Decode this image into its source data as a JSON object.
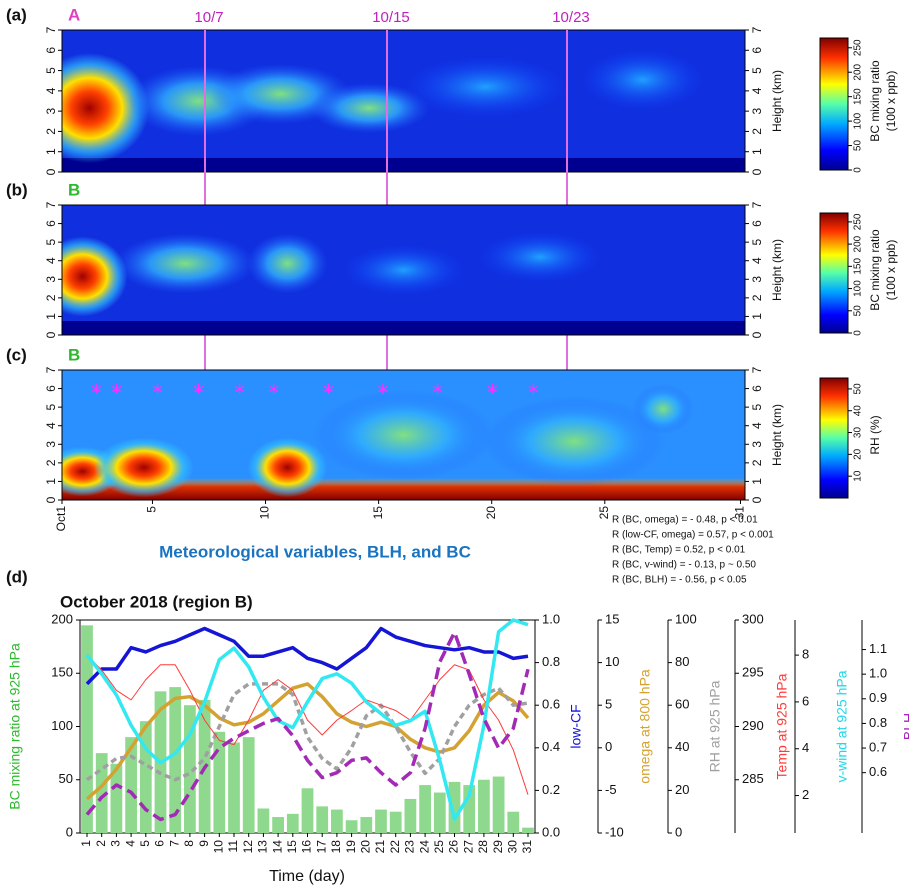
{
  "chart_data": [
    {
      "type": "heatmap",
      "panel_label": "(a)",
      "region": "A",
      "region_color": "#e040c0",
      "ylabel": "Height (km)",
      "ylim": [
        0,
        7
      ],
      "yticks": [
        0,
        1,
        2,
        3,
        4,
        5,
        6,
        7
      ],
      "markers": [
        "10/7",
        "10/15",
        "10/23"
      ],
      "colorbar": {
        "label": [
          "BC mixing ratio",
          "(100 x ppb)"
        ],
        "lim": [
          0,
          270
        ],
        "ticks": [
          0,
          50,
          100,
          150,
          200,
          250
        ]
      }
    },
    {
      "type": "heatmap",
      "panel_label": "(b)",
      "region": "B",
      "region_color": "#2eb82e",
      "ylabel": "Height (km)",
      "ylim": [
        0,
        7
      ],
      "yticks": [
        0,
        1,
        2,
        3,
        4,
        5,
        6,
        7
      ],
      "colorbar": {
        "label": [
          "BC mixing ratio",
          "(100 x ppb)"
        ],
        "lim": [
          0,
          270
        ],
        "ticks": [
          0,
          50,
          100,
          150,
          200,
          250
        ]
      }
    },
    {
      "type": "heatmap",
      "panel_label": "(c)",
      "region": "B",
      "region_color": "#2eb82e",
      "ylabel": "Height (km)",
      "ylim": [
        0,
        7
      ],
      "yticks": [
        0,
        1,
        2,
        3,
        4,
        5,
        6,
        7
      ],
      "xlim": [
        1,
        31.2
      ],
      "xticks": [
        {
          "value": 1,
          "label": "Oct1"
        },
        5,
        10,
        15,
        20,
        25,
        31
      ],
      "colorbar": {
        "label": [
          "RH (%)"
        ],
        "lim": [
          0,
          55
        ],
        "ticks": [
          10,
          20,
          30,
          40,
          50
        ]
      }
    },
    {
      "type": "multi_axis",
      "panel_label": "(d)",
      "heading": "Meteorological variables, BLH, and BC",
      "title": "October 2018 (region B)",
      "xlabel": "Time (day)",
      "annotations": [
        "R (BC, omega) = - 0.48, p < 0.01",
        "R (low-CF, omega) = 0.57, p < 0.001",
        "R (BC, Temp) = 0.52, p < 0.01",
        "R (BC, v-wind) = - 0.13, p ~ 0.50",
        "R (BC, BLH) = - 0.56, p < 0.05"
      ],
      "categories": [
        "1",
        "2",
        "3",
        "4",
        "5",
        "6",
        "7",
        "8",
        "9",
        "10",
        "11",
        "12",
        "13",
        "14",
        "15",
        "16",
        "17",
        "18",
        "19",
        "20",
        "21",
        "22",
        "23",
        "24",
        "25",
        "26",
        "27",
        "28",
        "29",
        "30",
        "31"
      ],
      "axes": [
        {
          "label": "BC mixing ratio at 925 hPa",
          "color": "#2eb82e",
          "ylim": [
            0,
            200
          ],
          "yticks": [
            0,
            50,
            100,
            150,
            200
          ]
        },
        {
          "label": "low-CF",
          "color": "#1515d6",
          "ylim": [
            0,
            1
          ],
          "yticks": [
            {
              "value": 0,
              "label": "0.0"
            },
            0.2,
            0.4,
            0.6,
            0.8,
            {
              "value": 1,
              "label": "1.0"
            }
          ]
        },
        {
          "label": "omega at 800 hPa",
          "color": "#d4a230",
          "ylim": [
            -10,
            15
          ],
          "yticks": [
            -10,
            -5,
            0,
            5,
            10,
            15
          ]
        },
        {
          "label": "RH at 925 hPa",
          "color": "#a0a0a0",
          "ylim": [
            0,
            100
          ],
          "yticks": [
            0,
            20,
            40,
            60,
            80,
            100
          ]
        },
        {
          "label": "Temp at 925 hPa",
          "color": "#ff3b3b",
          "ylim": [
            280,
            300
          ],
          "yticks": [
            285,
            290,
            295,
            300
          ]
        },
        {
          "label": "v-wind at 925 hPa",
          "color": "#22d8e8",
          "ylim": [
            0.4,
            9.5
          ],
          "yticks": [
            2,
            4,
            6,
            8
          ]
        },
        {
          "label": "BLH",
          "color": "#a32ab5",
          "ylim": [
            0.355,
            1.22
          ],
          "yticks": [
            0.6,
            0.7,
            0.8,
            0.9,
            {
              "value": 1,
              "label": "1.0"
            },
            1.1
          ]
        }
      ],
      "series": [
        {
          "kind": "bar",
          "axis": 0,
          "color": "#8fd98f",
          "values": [
            195,
            75,
            65,
            90,
            105,
            133,
            137,
            120,
            125,
            95,
            85,
            90,
            23,
            15,
            18,
            42,
            25,
            22,
            12,
            15,
            22,
            20,
            32,
            45,
            38,
            48,
            45,
            50,
            53,
            20,
            5
          ]
        },
        {
          "kind": "solid",
          "axis": 1,
          "color": "#1515d6",
          "values": [
            0.7,
            0.77,
            0.77,
            0.87,
            0.85,
            0.88,
            0.9,
            0.93,
            0.96,
            0.93,
            0.9,
            0.83,
            0.83,
            0.85,
            0.87,
            0.82,
            0.8,
            0.77,
            0.82,
            0.87,
            0.96,
            0.92,
            0.9,
            0.88,
            0.87,
            0.86,
            0.87,
            0.85,
            0.85,
            0.82,
            0.83
          ]
        },
        {
          "kind": "solid",
          "axis": 2,
          "color": "#d4a230",
          "values": [
            -6,
            -4.5,
            -2.5,
            0,
            2.5,
            4.5,
            5.8,
            6,
            5,
            3.5,
            2.7,
            3,
            4,
            5.5,
            7,
            7.5,
            6,
            4,
            3,
            2.5,
            3,
            2.5,
            1,
            0,
            -0.5,
            0,
            2,
            5,
            6.5,
            5.5,
            3.5
          ]
        },
        {
          "kind": "dashed",
          "axis": 3,
          "color": "#a0a0a0",
          "values": [
            25,
            30,
            35,
            36,
            32,
            28,
            25,
            28,
            35,
            50,
            65,
            70,
            70,
            70,
            65,
            45,
            35,
            30,
            40,
            55,
            60,
            50,
            38,
            28,
            35,
            50,
            60,
            65,
            68,
            60,
            61
          ]
        },
        {
          "kind": "thin",
          "axis": 4,
          "color": "#ff3b3b",
          "values": [
            296.7,
            295.3,
            293.4,
            292.5,
            294.4,
            295.8,
            295.8,
            293.4,
            290.6,
            288.7,
            288.3,
            290.6,
            293.4,
            294.4,
            293.4,
            290.6,
            289.2,
            290.6,
            291.5,
            292.5,
            292.0,
            291.5,
            290.6,
            292.5,
            294.4,
            295.8,
            295.3,
            292.5,
            290.6,
            287.8,
            283.6
          ]
        },
        {
          "kind": "solid",
          "axis": 5,
          "color": "#33e8f0",
          "values": [
            8.0,
            7.2,
            6.3,
            5.0,
            4.0,
            3.4,
            3.8,
            4.6,
            6.0,
            7.8,
            8.3,
            7.5,
            6.2,
            5.2,
            4.9,
            6.0,
            7.0,
            7.2,
            6.8,
            6.0,
            5.5,
            5.0,
            5.2,
            5.6,
            3.5,
            1.0,
            2.0,
            5.0,
            9.0,
            9.5,
            9.3
          ]
        },
        {
          "kind": "dashed",
          "axis": 6,
          "color": "#a32ab5",
          "values": [
            0.43,
            0.5,
            0.55,
            0.52,
            0.45,
            0.41,
            0.43,
            0.52,
            0.62,
            0.7,
            0.74,
            0.77,
            0.8,
            0.82,
            0.75,
            0.65,
            0.58,
            0.6,
            0.65,
            0.66,
            0.6,
            0.55,
            0.6,
            0.78,
            1.05,
            1.17,
            1.0,
            0.82,
            0.7,
            0.78,
            1.02
          ]
        }
      ]
    }
  ]
}
